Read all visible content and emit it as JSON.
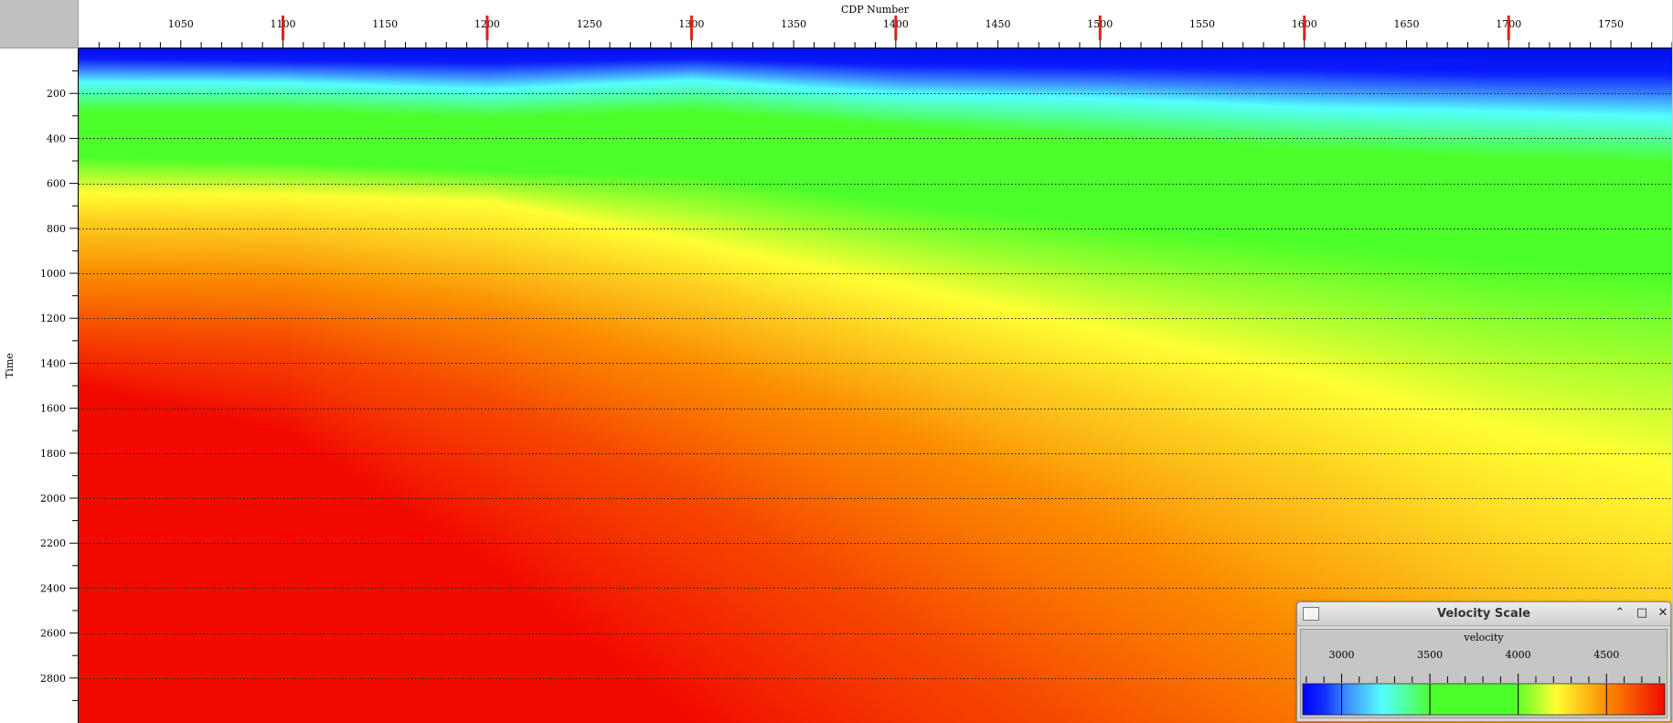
{
  "section": {
    "x_axis_title": "CDP Number",
    "y_axis_title": "Time",
    "x_tick_labels": [
      "1050",
      "1100",
      "1150",
      "1200",
      "1250",
      "1300",
      "1350",
      "1400",
      "1450",
      "1500",
      "1550",
      "1600",
      "1650",
      "1700",
      "1750"
    ],
    "y_tick_labels": [
      "200",
      "400",
      "600",
      "800",
      "1000",
      "1200",
      "1400",
      "1600",
      "1800",
      "2000",
      "2200",
      "2400",
      "2600",
      "2800"
    ],
    "cdp_range": [
      1000,
      1780
    ],
    "time_range_ms": [
      0,
      3000
    ],
    "control_point_cdps": [
      1100,
      1200,
      1300,
      1400,
      1500,
      1600,
      1700
    ],
    "control_marker_color": "#e0201a",
    "horizon_lines": "dotted every 200 ms",
    "colors": {
      "blue": "#0a1aff",
      "cyan": "#55ffff",
      "green": "#4cff2a",
      "yellow": "#ffff33",
      "orange": "#fb8c00",
      "red": "#f20a00"
    }
  },
  "velocity_scale": {
    "window_title": "Velocity Scale",
    "label": "velocity",
    "tick_labels": [
      "3000",
      "3500",
      "4000",
      "4500"
    ],
    "range": [
      2780,
      4830
    ],
    "buttons": {
      "minimize": "⌃",
      "maximize": "□",
      "close": "✕"
    }
  }
}
